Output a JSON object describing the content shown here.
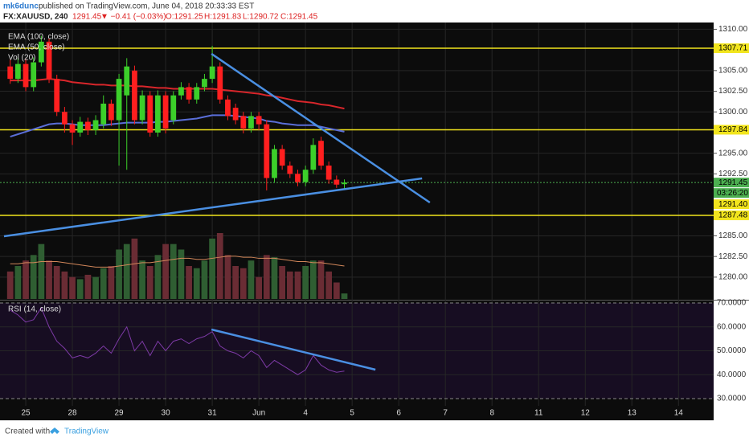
{
  "header": {
    "author": "mk6dunc",
    "published": "published on TradingView.com, June 04, 2018 20:33:33 EST",
    "symbol": "FX:XAUUSD, 240",
    "last": "1291.45",
    "change": "▼ −0.41 (−0.03%)",
    "open": "O:1291.25",
    "high": "H:1291.83",
    "low": "L:1290.72",
    "close": "C:1291.45"
  },
  "footer": {
    "created": "Created with",
    "brand": "TradingView"
  },
  "chart_data": {
    "type": "candlestick",
    "legend": [
      "EMA (100, close)",
      "EMA (50, close)",
      "Vol (20)"
    ],
    "rsi_title": "RSI (14, close)",
    "xlim": [
      -1.313,
      90.52
    ],
    "xticks": [
      {
        "value": 2,
        "label": "25"
      },
      {
        "value": 8,
        "label": "28"
      },
      {
        "value": 14,
        "label": "29"
      },
      {
        "value": 20,
        "label": "30"
      },
      {
        "value": 26,
        "label": "31"
      },
      {
        "value": 32,
        "label": "Jun"
      },
      {
        "value": 38,
        "label": "4"
      },
      {
        "value": 44,
        "label": "5"
      },
      {
        "value": 50,
        "label": "6"
      },
      {
        "value": 56,
        "label": "7"
      },
      {
        "value": 62,
        "label": "8"
      },
      {
        "value": 68,
        "label": "11"
      },
      {
        "value": 74,
        "label": "12"
      },
      {
        "value": 80,
        "label": "13"
      },
      {
        "value": 86,
        "label": "14"
      }
    ],
    "ylim": [
      1277.36,
      1310.82
    ],
    "yticks": [
      {
        "value": 1310,
        "label": "1310.00"
      },
      {
        "value": 1305,
        "label": "1305.00"
      },
      {
        "value": 1302.5,
        "label": "1302.50"
      },
      {
        "value": 1300,
        "label": "1300.00"
      },
      {
        "value": 1295,
        "label": "1295.00"
      },
      {
        "value": 1292.5,
        "label": "1292.50"
      },
      {
        "value": 1285,
        "label": "1285.00"
      },
      {
        "value": 1282.5,
        "label": "1282.50"
      },
      {
        "value": 1280,
        "label": "1280.00"
      }
    ],
    "rsi_lim": [
      26.97,
      70.67
    ],
    "rsi_ticks": [
      {
        "value": 70,
        "label": "70.0000"
      },
      {
        "value": 60,
        "label": "60.0000"
      },
      {
        "value": 50,
        "label": "50.0000"
      },
      {
        "value": 40,
        "label": "40.0000"
      },
      {
        "value": 30,
        "label": "30.0000"
      }
    ],
    "up_color": "#3ccf2a",
    "down_color": "#ff1f1f",
    "open": [
      1305.5,
      1304.0,
      1305.8,
      1303.0,
      1306.0,
      1308.5,
      1304.0,
      1300.0,
      1298.5,
      1297.5,
      1298.8,
      1297.8,
      1298.5,
      1301.0,
      1299.0,
      1302.0,
      1305.0,
      1299.0,
      1302.0,
      1297.5,
      1302.0,
      1299.0,
      1302.0,
      1303.0,
      1301.5,
      1303.0,
      1304.0,
      1305.5,
      1301.5,
      1300.5,
      1299.5,
      1298.0,
      1299.5,
      1298.5,
      1292.0,
      1295.5,
      1293.5,
      1292.5,
      1291.5,
      1293.0,
      1296.5,
      1293.5,
      1291.8,
      1291.25
    ],
    "high": [
      1306.3,
      1306.5,
      1306.4,
      1306.6,
      1309.2,
      1308.9,
      1304.5,
      1300.6,
      1299.0,
      1299.4,
      1299.3,
      1299.6,
      1302.0,
      1301.5,
      1304.6,
      1306.5,
      1305.6,
      1302.6,
      1302.5,
      1302.6,
      1302.5,
      1302.5,
      1303.6,
      1303.5,
      1303.5,
      1304.6,
      1308.0,
      1306.0,
      1302.0,
      1301.0,
      1300.0,
      1300.0,
      1300.0,
      1299.0,
      1296.0,
      1296.0,
      1294.0,
      1293.0,
      1293.5,
      1296.8,
      1297.0,
      1294.0,
      1292.3,
      1291.83
    ],
    "low": [
      1303.4,
      1303.5,
      1302.5,
      1302.5,
      1305.5,
      1303.5,
      1299.5,
      1297.5,
      1296.0,
      1297.0,
      1297.2,
      1297.2,
      1298.0,
      1298.3,
      1293.5,
      1293.0,
      1298.5,
      1298.5,
      1297.0,
      1297.0,
      1297.4,
      1298.5,
      1301.5,
      1301.0,
      1301.0,
      1302.5,
      1303.5,
      1301.0,
      1299.0,
      1298.5,
      1297.4,
      1297.5,
      1297.8,
      1290.5,
      1291.5,
      1293.0,
      1292.0,
      1291.0,
      1291.0,
      1292.5,
      1293.0,
      1291.3,
      1290.8,
      1290.72
    ],
    "close": [
      1304.0,
      1305.8,
      1303.0,
      1306.0,
      1308.5,
      1304.0,
      1300.0,
      1298.5,
      1297.5,
      1298.8,
      1297.8,
      1299.0,
      1301.0,
      1299.0,
      1304.0,
      1305.5,
      1299.0,
      1302.0,
      1297.5,
      1302.0,
      1298.0,
      1302.0,
      1303.0,
      1301.5,
      1303.0,
      1304.0,
      1305.5,
      1301.5,
      1299.5,
      1299.0,
      1298.0,
      1299.5,
      1298.5,
      1292.0,
      1295.5,
      1293.5,
      1292.5,
      1291.5,
      1293.0,
      1296.0,
      1293.5,
      1291.8,
      1291.2,
      1291.45
    ],
    "series": [
      {
        "name": "EMA (100, close)",
        "color": "#d9262b",
        "values": [
          1303.8,
          1303.8,
          1303.8,
          1303.8,
          1303.9,
          1304.0,
          1303.9,
          1303.8,
          1303.6,
          1303.5,
          1303.4,
          1303.3,
          1303.3,
          1303.2,
          1303.2,
          1303.2,
          1303.1,
          1303.1,
          1303.0,
          1302.9,
          1302.9,
          1302.8,
          1302.8,
          1302.8,
          1302.8,
          1302.8,
          1302.8,
          1302.7,
          1302.6,
          1302.5,
          1302.4,
          1302.3,
          1302.2,
          1302.0,
          1301.9,
          1301.7,
          1301.5,
          1301.3,
          1301.2,
          1301.1,
          1300.9,
          1300.8,
          1300.6,
          1300.4
        ]
      },
      {
        "name": "EMA (50, close)",
        "color": "#5a6ed8",
        "values": [
          1297.0,
          1297.3,
          1297.6,
          1297.9,
          1298.2,
          1298.5,
          1298.6,
          1298.6,
          1298.5,
          1298.4,
          1298.4,
          1298.4,
          1298.4,
          1298.5,
          1298.6,
          1298.7,
          1298.7,
          1298.7,
          1298.7,
          1298.8,
          1298.8,
          1298.9,
          1299.0,
          1299.1,
          1299.2,
          1299.4,
          1299.6,
          1299.6,
          1299.6,
          1299.5,
          1299.4,
          1299.3,
          1299.2,
          1298.9,
          1298.8,
          1298.6,
          1298.5,
          1298.4,
          1298.4,
          1298.4,
          1298.2,
          1298.0,
          1297.8,
          1297.6
        ]
      }
    ],
    "volume": [
      25,
      30,
      35,
      40,
      50,
      35,
      30,
      25,
      20,
      18,
      22,
      20,
      28,
      30,
      45,
      50,
      55,
      35,
      30,
      40,
      50,
      50,
      45,
      30,
      28,
      35,
      55,
      60,
      40,
      30,
      28,
      35,
      20,
      40,
      38,
      30,
      25,
      25,
      30,
      35,
      35,
      25,
      15,
      5
    ],
    "volume_ma": {
      "color": "#d2875a",
      "values": [
        32,
        32,
        33,
        33,
        34,
        34,
        34,
        33,
        32,
        31,
        30,
        29,
        29,
        29,
        30,
        31,
        32,
        33,
        33,
        34,
        35,
        36,
        37,
        37,
        36,
        36,
        37,
        38,
        39,
        39,
        38,
        38,
        37,
        37,
        37,
        36,
        35,
        34,
        34,
        33,
        33,
        32,
        31,
        30
      ]
    },
    "rsi": {
      "color": "#7d3aa6",
      "values": [
        67,
        65,
        62,
        63,
        68,
        60,
        54,
        51,
        47,
        48,
        47,
        49,
        52,
        49,
        55,
        60,
        50,
        54,
        48,
        54,
        50,
        54,
        55,
        53,
        55,
        56,
        58,
        52,
        50,
        49,
        47,
        50,
        48,
        43,
        46,
        44,
        42,
        40,
        42,
        48,
        44,
        42,
        41,
        41.5
      ]
    },
    "hlines": {
      "color": "#f2e51d",
      "values": [
        1307.71,
        1297.84,
        1287.48
      ]
    },
    "last_price": {
      "color": "#4caf50",
      "value": 1291.45,
      "countdown": "03:26:20"
    },
    "marker_label": {
      "value": 1291.4,
      "label": "1291.40"
    },
    "trendlines": {
      "color": "#4a8fe2",
      "lines": [
        {
          "x": [
            25.9,
            54.0
          ],
          "y": [
            1307.03,
            1289.03
          ]
        },
        {
          "x": [
            -0.8,
            53.0
          ],
          "y": [
            1284.95,
            1291.95
          ]
        }
      ],
      "rsi_lines": [
        {
          "x": [
            25.9,
            47.0
          ],
          "y": [
            58.9,
            42.1
          ]
        }
      ]
    }
  }
}
